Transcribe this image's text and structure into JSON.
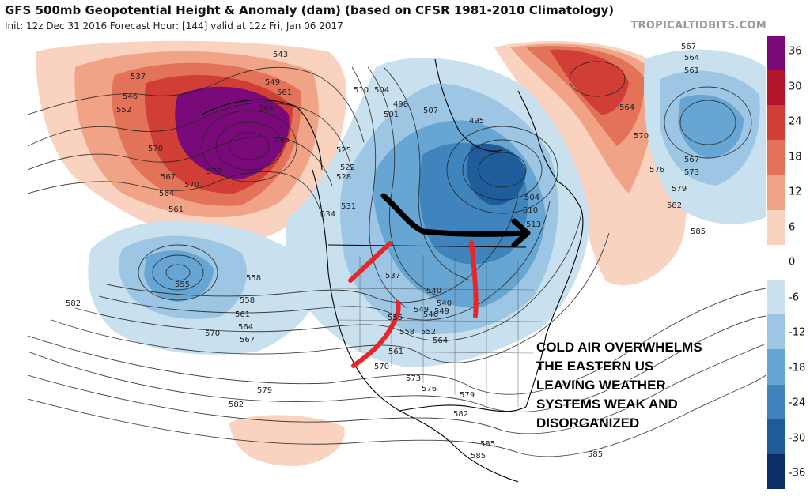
{
  "header": {
    "title": "GFS 500mb Geopotential Height & Anomaly (dam) (based on CFSR 1981-2010 Climatology)",
    "subtitle": "Init: 12z Dec 31 2016   Forecast Hour: [144]   valid at 12z Fri, Jan 06 2017",
    "credit": "TROPICALTIDBITS.COM"
  },
  "colorbar": {
    "labels": [
      "36",
      "30",
      "24",
      "18",
      "12",
      "6",
      "0",
      "-6",
      "-12",
      "-18",
      "-24",
      "-30",
      "-36"
    ],
    "colors": {
      "c36": "#7a0a7a",
      "c30": "#b3162a",
      "c24": "#d03e35",
      "c18": "#e27258",
      "c12": "#f0a386",
      "c6": "#f9d3bf",
      "c0": "#ffffff",
      "cm6": "#c9e0ef",
      "cm12": "#9cc6e3",
      "cm18": "#67a6d2",
      "cm24": "#3f84bd",
      "cm30": "#1f5c9a",
      "cm36": "#0b2e66"
    }
  },
  "annotation": {
    "lines": [
      "COLD AIR OVERWHELMS",
      "THE EASTERN US",
      "LEAVING WEATHER",
      "SYSTEMS WEAK AND",
      "DISORGANIZED"
    ]
  },
  "contour_labels": [
    "537",
    "546",
    "552",
    "570",
    "567",
    "564",
    "561",
    "570",
    "573",
    "546",
    "549",
    "543",
    "561",
    "564",
    "510",
    "504",
    "498",
    "501",
    "507",
    "495",
    "525",
    "522",
    "528",
    "531",
    "534",
    "537",
    "540",
    "549",
    "558",
    "555",
    "558",
    "561",
    "564",
    "567",
    "570",
    "579",
    "582",
    "582",
    "573",
    "570",
    "561",
    "564",
    "558",
    "552",
    "555",
    "546",
    "549",
    "540",
    "510",
    "513",
    "504",
    "567",
    "564",
    "561",
    "564",
    "570",
    "576",
    "573",
    "567",
    "579",
    "582",
    "585",
    "579",
    "576",
    "582",
    "585",
    "585",
    "585"
  ]
}
